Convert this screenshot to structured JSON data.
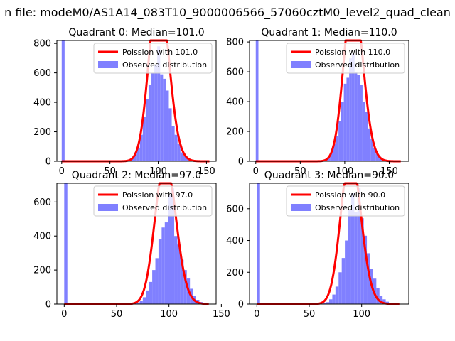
{
  "figure": {
    "suptitle": "n file: modeM0/AS1A14_083T10_9000006566_57060cztM0_level2_quad_clean"
  },
  "colors": {
    "poisson_line": "#ff0000",
    "histogram_bar": "#8080ff",
    "axes": "#000000",
    "background": "#ffffff"
  },
  "chart_data": [
    {
      "type": "bar",
      "panel": "quadrant-0",
      "title": "Quadrant 0: Median=101.0",
      "xlabel": "",
      "ylabel": "",
      "xlim": [
        -5,
        160
      ],
      "ylim": [
        0,
        820
      ],
      "xticks": [
        0,
        50,
        100,
        150
      ],
      "yticks": [
        0,
        200,
        400,
        600,
        800
      ],
      "grid": false,
      "legend_position": "top-right",
      "legend": [
        "Poission with 101.0",
        "Observed distribution"
      ],
      "median": 101.0,
      "series": [
        {
          "name": "Observed distribution",
          "kind": "histogram",
          "bin_width": 3,
          "bin_starts": [
            0,
            66,
            69,
            72,
            75,
            78,
            81,
            84,
            87,
            90,
            93,
            96,
            99,
            102,
            105,
            108,
            111,
            114,
            117,
            120,
            123,
            126,
            129,
            132,
            135,
            138,
            141,
            144,
            147
          ],
          "counts": [
            820,
            5,
            10,
            20,
            60,
            90,
            180,
            300,
            420,
            520,
            600,
            650,
            780,
            590,
            560,
            480,
            360,
            240,
            180,
            120,
            60,
            40,
            20,
            10,
            5,
            3,
            2,
            1,
            1
          ]
        },
        {
          "name": "Poission with 101.0",
          "kind": "poisson-curve",
          "mean": 101.0,
          "scale": 3,
          "count_total": 10000,
          "x_range": [
            0,
            153
          ]
        }
      ]
    },
    {
      "type": "bar",
      "panel": "quadrant-1",
      "title": "Quadrant 1: Median=110.0",
      "xlabel": "",
      "ylabel": "",
      "xlim": [
        -7,
        172
      ],
      "ylim": [
        0,
        810
      ],
      "xticks": [
        0,
        50,
        100,
        150
      ],
      "yticks": [
        0,
        200,
        400,
        600,
        800
      ],
      "grid": false,
      "legend_position": "top-right",
      "legend": [
        "Poission with 110.0",
        "Observed distribution"
      ],
      "median": 110.0,
      "series": [
        {
          "name": "Observed distribution",
          "kind": "histogram",
          "bin_width": 3,
          "bin_starts": [
            0,
            75,
            78,
            81,
            84,
            87,
            90,
            93,
            96,
            99,
            102,
            105,
            108,
            111,
            114,
            117,
            120,
            123,
            126,
            129,
            132,
            135,
            138,
            141,
            144,
            147,
            150,
            153
          ],
          "counts": [
            810,
            5,
            15,
            30,
            60,
            120,
            170,
            270,
            400,
            520,
            560,
            690,
            720,
            600,
            580,
            510,
            400,
            330,
            220,
            150,
            90,
            50,
            30,
            15,
            8,
            4,
            2,
            1
          ]
        },
        {
          "name": "Poission with 110.0",
          "kind": "poisson-curve",
          "mean": 110.0,
          "scale": 3,
          "count_total": 10000,
          "x_range": [
            0,
            163
          ]
        }
      ]
    },
    {
      "type": "bar",
      "panel": "quadrant-2",
      "title": "Quadrant 2: Median=97.0",
      "xlabel": "",
      "ylabel": "",
      "xlim": [
        -7,
        145
      ],
      "ylim": [
        0,
        710
      ],
      "xticks": [
        0,
        50,
        100,
        150
      ],
      "yticks": [
        0,
        200,
        400,
        600
      ],
      "grid": false,
      "legend_position": "top-right",
      "legend": [
        "Poission with 97.0",
        "Observed distribution"
      ],
      "median": 97.0,
      "series": [
        {
          "name": "Observed distribution",
          "kind": "histogram",
          "bin_width": 3,
          "bin_starts": [
            0,
            69,
            72,
            75,
            78,
            81,
            84,
            87,
            90,
            93,
            96,
            99,
            102,
            105,
            108,
            111,
            114,
            117,
            120,
            123,
            126,
            129,
            132,
            135
          ],
          "counts": [
            710,
            8,
            20,
            40,
            80,
            130,
            200,
            270,
            380,
            450,
            480,
            640,
            680,
            400,
            350,
            260,
            200,
            150,
            90,
            50,
            25,
            12,
            5,
            2
          ]
        },
        {
          "name": "Poission with 97.0",
          "kind": "poisson-curve",
          "mean": 97.0,
          "scale": 3,
          "count_total": 7000,
          "x_range": [
            0,
            138
          ]
        }
      ]
    },
    {
      "type": "bar",
      "panel": "quadrant-3",
      "title": "Quadrant 3: Median=90.0",
      "xlabel": "",
      "ylabel": "",
      "xlim": [
        -7,
        145
      ],
      "ylim": [
        0,
        760
      ],
      "xticks": [
        0,
        50,
        100
      ],
      "yticks": [
        0,
        200,
        400,
        600
      ],
      "grid": false,
      "legend_position": "top-right",
      "legend": [
        "Poission with 90.0",
        "Observed distribution"
      ],
      "median": 90.0,
      "series": [
        {
          "name": "Observed distribution",
          "kind": "histogram",
          "bin_width": 3,
          "bin_starts": [
            0,
            63,
            66,
            69,
            72,
            75,
            78,
            81,
            84,
            87,
            90,
            93,
            96,
            99,
            102,
            105,
            108,
            111,
            114,
            117,
            120,
            123,
            126,
            129
          ],
          "counts": [
            760,
            5,
            12,
            30,
            60,
            110,
            200,
            290,
            400,
            590,
            700,
            580,
            730,
            540,
            430,
            320,
            220,
            160,
            100,
            50,
            30,
            15,
            6,
            2
          ]
        },
        {
          "name": "Poission with 90.0",
          "kind": "poisson-curve",
          "mean": 90.0,
          "scale": 3,
          "count_total": 7500,
          "x_range": [
            0,
            136
          ]
        }
      ]
    }
  ]
}
